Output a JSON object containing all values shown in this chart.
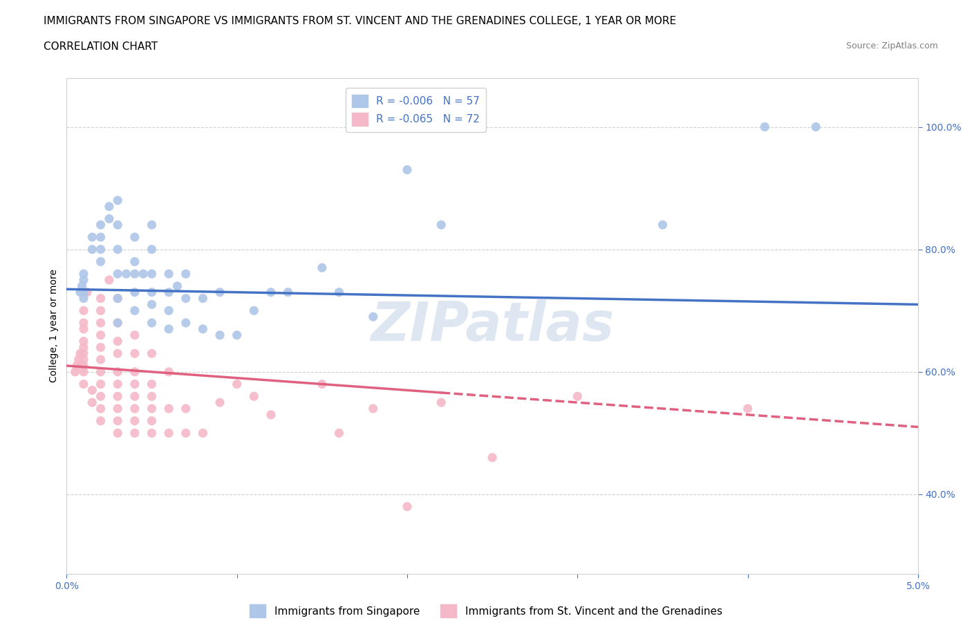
{
  "title_line1": "IMMIGRANTS FROM SINGAPORE VS IMMIGRANTS FROM ST. VINCENT AND THE GRENADINES COLLEGE, 1 YEAR OR MORE",
  "title_line2": "CORRELATION CHART",
  "source_text": "Source: ZipAtlas.com",
  "ylabel": "College, 1 year or more",
  "xlim": [
    0.0,
    0.05
  ],
  "ylim": [
    0.27,
    1.08
  ],
  "xticks": [
    0.0,
    0.01,
    0.02,
    0.03,
    0.04,
    0.05
  ],
  "xticklabels": [
    "0.0%",
    "",
    "",
    "",
    "",
    "5.0%"
  ],
  "ytick_positions": [
    0.4,
    0.6,
    0.8,
    1.0
  ],
  "yticklabels": [
    "40.0%",
    "60.0%",
    "80.0%",
    "100.0%"
  ],
  "singapore_x": [
    0.0008,
    0.0009,
    0.001,
    0.001,
    0.001,
    0.001,
    0.0015,
    0.0015,
    0.002,
    0.002,
    0.002,
    0.002,
    0.0025,
    0.0025,
    0.003,
    0.003,
    0.003,
    0.003,
    0.003,
    0.003,
    0.0035,
    0.004,
    0.004,
    0.004,
    0.004,
    0.004,
    0.0045,
    0.005,
    0.005,
    0.005,
    0.005,
    0.005,
    0.005,
    0.006,
    0.006,
    0.006,
    0.006,
    0.0065,
    0.007,
    0.007,
    0.007,
    0.008,
    0.008,
    0.009,
    0.009,
    0.01,
    0.011,
    0.012,
    0.013,
    0.015,
    0.016,
    0.018,
    0.02,
    0.022,
    0.035,
    0.041,
    0.044
  ],
  "singapore_y": [
    0.73,
    0.74,
    0.72,
    0.73,
    0.75,
    0.76,
    0.8,
    0.82,
    0.78,
    0.8,
    0.82,
    0.84,
    0.85,
    0.87,
    0.68,
    0.72,
    0.76,
    0.8,
    0.84,
    0.88,
    0.76,
    0.7,
    0.73,
    0.76,
    0.78,
    0.82,
    0.76,
    0.68,
    0.71,
    0.73,
    0.76,
    0.8,
    0.84,
    0.67,
    0.7,
    0.73,
    0.76,
    0.74,
    0.68,
    0.72,
    0.76,
    0.67,
    0.72,
    0.66,
    0.73,
    0.66,
    0.7,
    0.73,
    0.73,
    0.77,
    0.73,
    0.69,
    0.93,
    0.84,
    0.84,
    1.0,
    1.0
  ],
  "singapore_R": -0.006,
  "singapore_N": 57,
  "singapore_color": "#aec6e8",
  "singapore_line_color": "#4472c4",
  "stvincent_x": [
    0.0005,
    0.0006,
    0.0007,
    0.0008,
    0.0009,
    0.001,
    0.001,
    0.001,
    0.001,
    0.001,
    0.001,
    0.001,
    0.001,
    0.001,
    0.001,
    0.0012,
    0.0015,
    0.0015,
    0.002,
    0.002,
    0.002,
    0.002,
    0.002,
    0.002,
    0.002,
    0.002,
    0.002,
    0.002,
    0.002,
    0.0025,
    0.003,
    0.003,
    0.003,
    0.003,
    0.003,
    0.003,
    0.003,
    0.003,
    0.003,
    0.003,
    0.004,
    0.004,
    0.004,
    0.004,
    0.004,
    0.004,
    0.004,
    0.004,
    0.005,
    0.005,
    0.005,
    0.005,
    0.005,
    0.005,
    0.006,
    0.006,
    0.006,
    0.007,
    0.007,
    0.008,
    0.009,
    0.01,
    0.011,
    0.012,
    0.015,
    0.016,
    0.018,
    0.02,
    0.022,
    0.025,
    0.03,
    0.04
  ],
  "stvincent_y": [
    0.6,
    0.61,
    0.62,
    0.63,
    0.61,
    0.58,
    0.6,
    0.61,
    0.62,
    0.63,
    0.64,
    0.65,
    0.67,
    0.68,
    0.7,
    0.73,
    0.55,
    0.57,
    0.52,
    0.54,
    0.56,
    0.58,
    0.6,
    0.62,
    0.64,
    0.66,
    0.68,
    0.7,
    0.72,
    0.75,
    0.5,
    0.52,
    0.54,
    0.56,
    0.58,
    0.6,
    0.63,
    0.65,
    0.68,
    0.72,
    0.5,
    0.52,
    0.54,
    0.56,
    0.58,
    0.6,
    0.63,
    0.66,
    0.5,
    0.52,
    0.54,
    0.56,
    0.58,
    0.63,
    0.5,
    0.54,
    0.6,
    0.5,
    0.54,
    0.5,
    0.55,
    0.58,
    0.56,
    0.53,
    0.58,
    0.5,
    0.54,
    0.38,
    0.55,
    0.46,
    0.56,
    0.54
  ],
  "stvincent_R": -0.065,
  "stvincent_N": 72,
  "stvincent_color": "#f4b8c8",
  "stvincent_line_color": "#e06080",
  "grid_color": "#d0d0d0",
  "background_color": "white",
  "watermark_color": "#c8d8e8",
  "tick_color": "#4472c4",
  "title_fontsize": 11,
  "axis_label_fontsize": 10,
  "tick_fontsize": 10,
  "legend_fontsize": 11
}
